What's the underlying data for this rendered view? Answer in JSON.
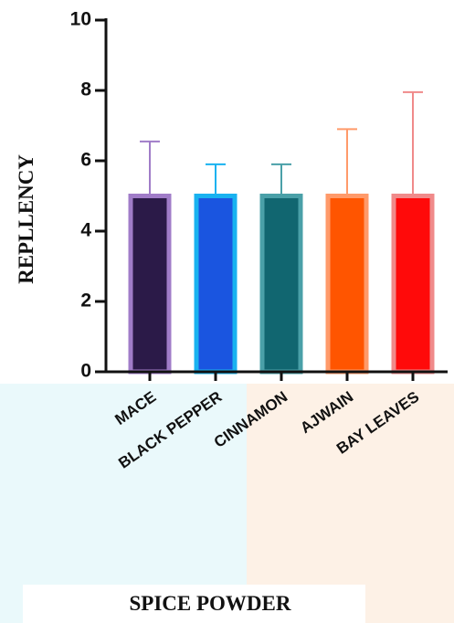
{
  "chart_data": {
    "type": "bar",
    "y_label": "REPLLENCY",
    "x_label": "SPICE POWDER",
    "categories": [
      "MACE",
      "BLACK PEPPER",
      "CINNAMON",
      "AJWAIN",
      "BAY LEAVES"
    ],
    "values": [
      5,
      5,
      5,
      5,
      5
    ],
    "errors": [
      1.55,
      0.9,
      0.9,
      1.9,
      2.95
    ],
    "colors": [
      "#2b1a48",
      "#1a55e0",
      "#116670",
      "#ff5500",
      "#ff0a0a"
    ],
    "edge_colors": [
      "#a07cc8",
      "#19b2f0",
      "#4aa0a8",
      "#ff9a6a",
      "#f08a8a"
    ],
    "ylim": [
      0,
      10
    ],
    "yticks": [
      0,
      2,
      4,
      6,
      8,
      10
    ]
  }
}
